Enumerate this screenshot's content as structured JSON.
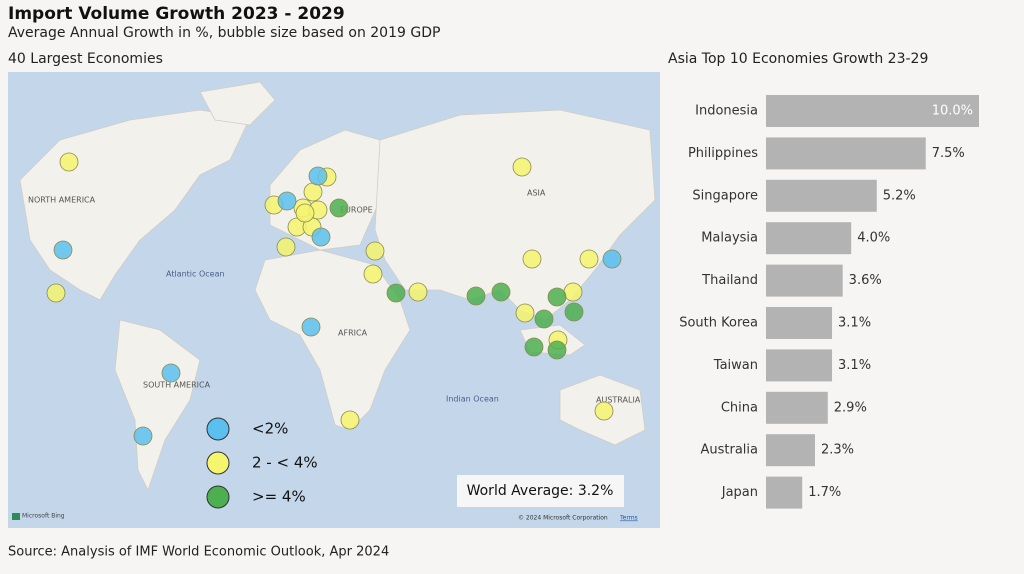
{
  "title": "Import Volume Growth 2023 - 2029",
  "subtitle": "Average Annual Growth in %, bubble size based on 2019 GDP",
  "source": "Source: Analysis of IMF World Economic Outlook, Apr 2024",
  "map": {
    "title": "40 Largest Economies",
    "labels": [
      "NORTH AMERICA",
      "ASIA",
      "EUROPE",
      "Atlantic Ocean",
      "AFRICA",
      "SOUTH AMERICA",
      "Indian Ocean",
      "AUSTRALIA"
    ],
    "legend": [
      {
        "label": "<2%",
        "color": "#5bc0f0"
      },
      {
        "label": "2 - < 4%",
        "color": "#f5f56e"
      },
      {
        "label": ">= 4%",
        "color": "#4caf50"
      }
    ],
    "world_average": "World Average: 3.2%",
    "brand": "Microsoft Bing",
    "copyright": "© 2024 Microsoft Corporation",
    "terms": "Terms"
  },
  "chart_data": {
    "type": "bar",
    "orientation": "horizontal",
    "title": "Asia Top 10 Economies Growth 23-29",
    "categories": [
      "Indonesia",
      "Philippines",
      "Singapore",
      "Malaysia",
      "Thailand",
      "South Korea",
      "Taiwan",
      "China",
      "Australia",
      "Japan"
    ],
    "values": [
      10.0,
      7.5,
      5.2,
      4.0,
      3.6,
      3.1,
      3.1,
      2.9,
      2.3,
      1.7
    ],
    "value_labels": [
      "10.0%",
      "7.5%",
      "5.2%",
      "4.0%",
      "3.6%",
      "3.1%",
      "3.1%",
      "2.9%",
      "2.3%",
      "1.7%"
    ],
    "color": "#b3b3b3"
  }
}
